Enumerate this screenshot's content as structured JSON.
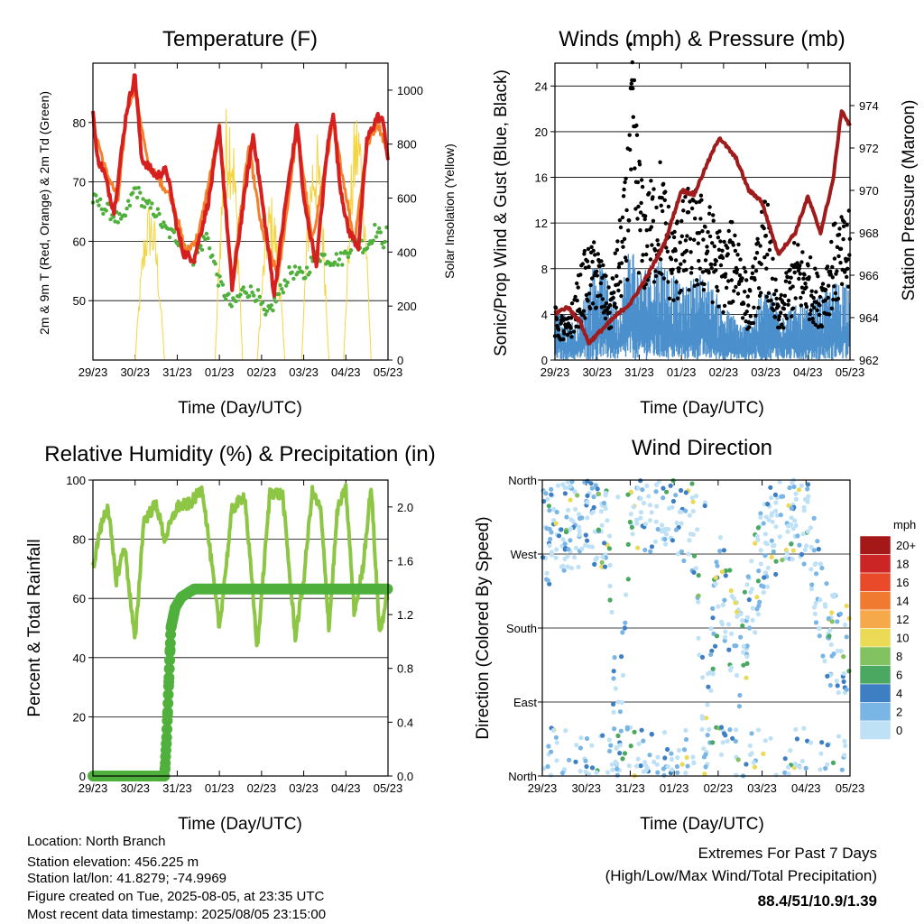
{
  "chart_data": [
    {
      "id": "temperature",
      "type": "line",
      "title": "Temperature (F)",
      "xlabel": "Time (Day/UTC)",
      "ylabel": "2m & 9m T (Red, Orange) & 2m Td (Green)",
      "ylabel2": "Solar Insolation (Yellow)",
      "x_ticks": [
        "29/23",
        "30/23",
        "31/23",
        "01/23",
        "02/23",
        "03/23",
        "04/23",
        "05/23"
      ],
      "ylim": [
        40,
        90
      ],
      "y_ticks": [
        50,
        60,
        70,
        80
      ],
      "y2lim": [
        0,
        1100
      ],
      "y2_ticks": [
        0,
        200,
        400,
        600,
        800,
        1000
      ],
      "series": [
        {
          "name": "2m T",
          "axis": "left",
          "color": "#d62020",
          "width": 4,
          "x": [
            0,
            0.1,
            0.25,
            0.5,
            0.8,
            1.0,
            1.15,
            1.5,
            1.75,
            1.9,
            2.0,
            2.15,
            2.4,
            2.75,
            3.0,
            3.3,
            3.6,
            3.8,
            3.9,
            4.3,
            4.6,
            4.85,
            5.0,
            5.3,
            5.55,
            5.7,
            5.85,
            6.05,
            6.3,
            6.5,
            6.75,
            6.9,
            7.0
          ],
          "y": [
            82,
            74,
            72,
            65,
            82,
            88,
            74,
            71,
            72,
            66,
            62,
            58,
            57,
            67,
            79,
            52,
            68,
            78,
            73,
            51,
            68,
            80,
            67,
            56,
            75,
            82,
            70,
            62,
            59,
            77,
            81,
            80,
            73
          ]
        },
        {
          "name": "9m T",
          "axis": "left",
          "color": "#f4802c",
          "width": 3,
          "x": [
            0,
            0.3,
            0.6,
            0.8,
            1.0,
            1.3,
            1.5,
            1.9,
            2.2,
            2.5,
            3.0,
            3.3,
            3.7,
            4.0,
            4.4,
            4.85,
            5.2,
            5.7,
            6.2,
            6.5,
            6.75,
            7.0
          ],
          "y": [
            80,
            72,
            67,
            82,
            86,
            73,
            71,
            67,
            58,
            61,
            79,
            53,
            76,
            62,
            54,
            79,
            60,
            80,
            60,
            76,
            80,
            75
          ]
        },
        {
          "name": "2m Td",
          "axis": "left",
          "color": "#4fb03c",
          "width": 3,
          "x": [
            0,
            0.2,
            0.4,
            0.7,
            1.0,
            1.25,
            1.5,
            1.7,
            1.9,
            2.1,
            2.4,
            2.7,
            3.0,
            3.3,
            3.6,
            3.9,
            4.1,
            4.4,
            4.7,
            5.0,
            5.3,
            5.6,
            5.9,
            6.2,
            6.5,
            6.7,
            6.9,
            7.0
          ],
          "y": [
            67,
            66,
            65,
            63,
            69,
            66,
            65,
            62,
            61,
            60,
            57,
            61,
            53,
            49,
            52,
            51,
            47,
            51,
            55,
            54,
            58,
            57,
            57,
            60,
            59,
            62,
            60,
            62
          ]
        },
        {
          "name": "Solar",
          "axis": "right",
          "color": "#f5d442",
          "width": 1,
          "pulses": [
            [
              1.0,
              1.7,
              600
            ],
            [
              2.9,
              3.55,
              1000
            ],
            [
              3.9,
              4.55,
              620
            ],
            [
              4.95,
              5.6,
              870
            ],
            [
              5.95,
              6.6,
              960
            ]
          ]
        }
      ]
    },
    {
      "id": "winds",
      "type": "scatter",
      "title": "Winds (mph) & Pressure (mb)",
      "xlabel": "Time (Day/UTC)",
      "ylabel": "Sonic/Prop Wind & Gust (Blue, Black)",
      "ylabel2": "Station Pressure (Maroon)",
      "x_ticks": [
        "29/23",
        "30/23",
        "31/23",
        "01/23",
        "02/23",
        "03/23",
        "04/23",
        "05/23"
      ],
      "ylim": [
        0,
        26
      ],
      "y_ticks": [
        0,
        4,
        8,
        12,
        16,
        20,
        24
      ],
      "y2lim": [
        962,
        976
      ],
      "y2_ticks": [
        962,
        964,
        966,
        968,
        970,
        972,
        974
      ],
      "series": [
        {
          "name": "Sonic/Prop Wind",
          "color": "#4b90cc",
          "x": [
            0,
            0.5,
            1.0,
            1.5,
            1.8,
            2.0,
            2.5,
            3.0,
            3.5,
            4.0,
            4.5,
            5.0,
            5.5,
            6.0,
            6.5,
            7.0
          ],
          "y": [
            3,
            2,
            6,
            3,
            7,
            5,
            6,
            4,
            5,
            3,
            2,
            4,
            3,
            3,
            4,
            5
          ]
        },
        {
          "name": "Gust",
          "color": "#000000",
          "x": [
            0,
            0.3,
            0.7,
            1.0,
            1.3,
            1.7,
            1.8,
            2.1,
            2.5,
            2.8,
            3.2,
            3.6,
            4.0,
            4.3,
            4.6,
            5.0,
            5.3,
            5.7,
            6.0,
            6.3,
            6.6,
            7.0
          ],
          "y": [
            4,
            3,
            8,
            9,
            5,
            14,
            23.8,
            12,
            15,
            10,
            13,
            12,
            9,
            11,
            5,
            13,
            4,
            9,
            8,
            6,
            10,
            11
          ]
        },
        {
          "name": "Station Pressure",
          "axis": "right",
          "color": "#a01c1c",
          "x": [
            0,
            0.3,
            0.6,
            0.8,
            1.0,
            1.4,
            1.8,
            2.2,
            2.6,
            3.0,
            3.3,
            3.6,
            3.9,
            4.3,
            4.6,
            4.9,
            5.3,
            5.7,
            6.0,
            6.3,
            6.6,
            6.8,
            7.0
          ],
          "y": [
            964.2,
            964.5,
            963.8,
            962.8,
            963.2,
            964.0,
            964.7,
            966.0,
            967.5,
            970.0,
            969.8,
            971.2,
            972.5,
            971.5,
            970.0,
            969.5,
            967.0,
            968.0,
            969.7,
            968.0,
            970.5,
            973.8,
            973.0
          ]
        }
      ]
    },
    {
      "id": "humidity",
      "type": "line",
      "title": "Relative Humidity (%) & Precipitation (in)",
      "xlabel": "Time (Day/UTC)",
      "ylabel": "Percent & Total Rainfall",
      "x_ticks": [
        "29/23",
        "30/23",
        "31/23",
        "01/23",
        "02/23",
        "03/23",
        "04/23",
        "05/23"
      ],
      "ylim": [
        0,
        100
      ],
      "y_ticks": [
        0,
        20,
        40,
        60,
        80,
        100
      ],
      "y2lim": [
        0,
        2.2
      ],
      "y2_ticks": [
        "0.0",
        "0.4",
        "0.8",
        "1.2",
        "1.6",
        "2.0"
      ],
      "series": [
        {
          "name": "Relative Humidity",
          "color": "#8dc645",
          "x": [
            0,
            0.15,
            0.35,
            0.55,
            0.75,
            1.0,
            1.2,
            1.5,
            1.7,
            2.0,
            2.3,
            2.6,
            3.0,
            3.3,
            3.6,
            3.9,
            4.2,
            4.5,
            4.8,
            5.0,
            5.2,
            5.4,
            5.6,
            5.8,
            6.0,
            6.2,
            6.4,
            6.6,
            6.8,
            7.0
          ],
          "y": [
            70,
            82,
            92,
            66,
            78,
            45,
            86,
            92,
            80,
            91,
            92,
            97,
            50,
            90,
            95,
            43,
            96,
            95,
            47,
            66,
            96,
            90,
            50,
            90,
            97,
            55,
            70,
            98,
            48,
            62
          ]
        },
        {
          "name": "Total Precipitation",
          "axis": "right",
          "color": "#4fb03c",
          "x": [
            0,
            1.7,
            1.75,
            1.8,
            1.85,
            1.95,
            2.1,
            2.4,
            7.0
          ],
          "y": [
            0,
            0,
            0.3,
            0.7,
            1.1,
            1.25,
            1.33,
            1.39,
            1.39
          ]
        }
      ]
    },
    {
      "id": "wind_direction",
      "type": "scatter",
      "title": "Wind Direction",
      "xlabel": "Time (Day/UTC)",
      "ylabel": "Direction (Colored By Speed)",
      "x_ticks": [
        "29/23",
        "30/23",
        "31/23",
        "01/23",
        "02/23",
        "03/23",
        "04/23",
        "05/23"
      ],
      "ylim": [
        0,
        360
      ],
      "y_ticks": [
        "North",
        "East",
        "South",
        "West",
        "North"
      ],
      "colorbar_title": "mph",
      "colorbar_labels": [
        "20+",
        "18",
        "16",
        "14",
        "12",
        "10",
        "8",
        "6",
        "4",
        "2",
        "0"
      ],
      "colorbar_colors": [
        "#a51818",
        "#cc2525",
        "#e84a2a",
        "#f07a30",
        "#f5a94a",
        "#eada55",
        "#82c260",
        "#4aa860",
        "#3d7fc2",
        "#79b6e5",
        "#bfe1f6"
      ],
      "series": [
        {
          "name": "Wind Direction",
          "x": [
            0,
            0.5,
            1.0,
            1.5,
            1.7,
            2.0,
            2.5,
            3.0,
            3.5,
            3.7,
            4.0,
            4.5,
            5.0,
            5.5,
            6.0,
            6.5,
            7.0
          ],
          "y": [
            290,
            300,
            320,
            310,
            15,
            340,
            330,
            335,
            300,
            20,
            250,
            140,
            280,
            320,
            310,
            170,
            145
          ]
        }
      ]
    }
  ],
  "info": {
    "location": "Location: North Branch",
    "elevation": "Station elevation: 456.225 m",
    "latlon": "Station lat/lon: 41.8279; -74.9969",
    "created": "Figure created on Tue, 2025-08-05, at 23:35 UTC",
    "recent": "Most recent data timestamp: 2025/08/05 23:15:00"
  },
  "extremes": {
    "line1": "Extremes For Past 7 Days",
    "line2": "(High/Low/Max Wind/Total Precipitation)",
    "values": "88.4/51/10.9/1.39",
    "color": "#d62020"
  }
}
